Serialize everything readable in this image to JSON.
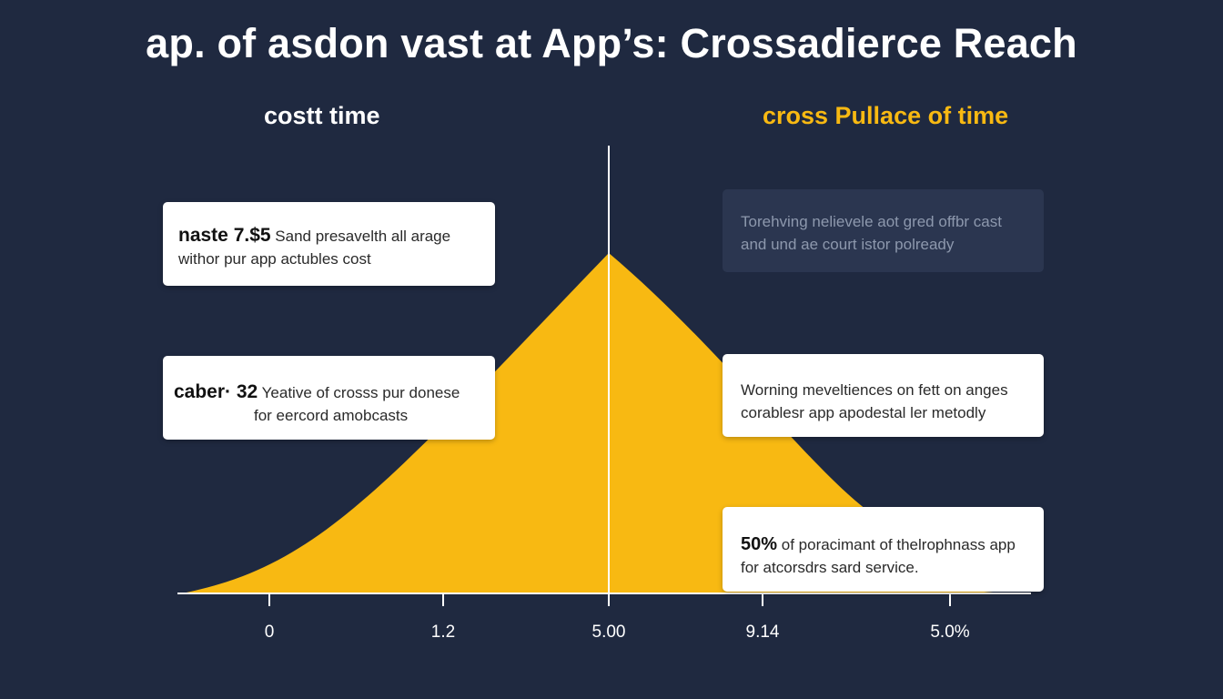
{
  "title": "ap. of asdon vast at App’s: Crossadierce Reach",
  "headings": {
    "left": "costt time",
    "right": "cross Pullace of time"
  },
  "colors": {
    "background": "#1f2940",
    "accent": "#f8b912",
    "axis": "#ffffff",
    "card": "#ffffff",
    "card_dim": "#2b3650"
  },
  "cards": [
    {
      "lead": "naste 7.$5",
      "line1": " Sand presavelth all arage",
      "line2": "withor pur app actubles cost"
    },
    {
      "lead": "caber· 32",
      "line1": " Yeative of crosss pur donese",
      "line2": "for eercord amobcasts"
    },
    {
      "lead": "",
      "line1": "Torehving nelievele aot gred offbr cast",
      "line2": "and und ae court istor polready"
    },
    {
      "lead": "",
      "line1": "Worning meveltiences on fett on anges",
      "line2": "corablesr app apodestal ler metodly"
    },
    {
      "lead": "50%",
      "line1": " of poracimant of thelrophnass app",
      "line2": "for atcorsdrs sard service."
    }
  ],
  "chart_data": {
    "type": "area",
    "x_ticks": [
      "0",
      "1.2",
      "5.00",
      "9.14",
      "5.0%"
    ],
    "peak_tick_index": 2,
    "series": [
      {
        "points": [
          [
            0,
            0
          ],
          [
            2,
            1
          ],
          [
            4,
            0
          ]
        ]
      }
    ],
    "grid": false,
    "legend": "none"
  }
}
